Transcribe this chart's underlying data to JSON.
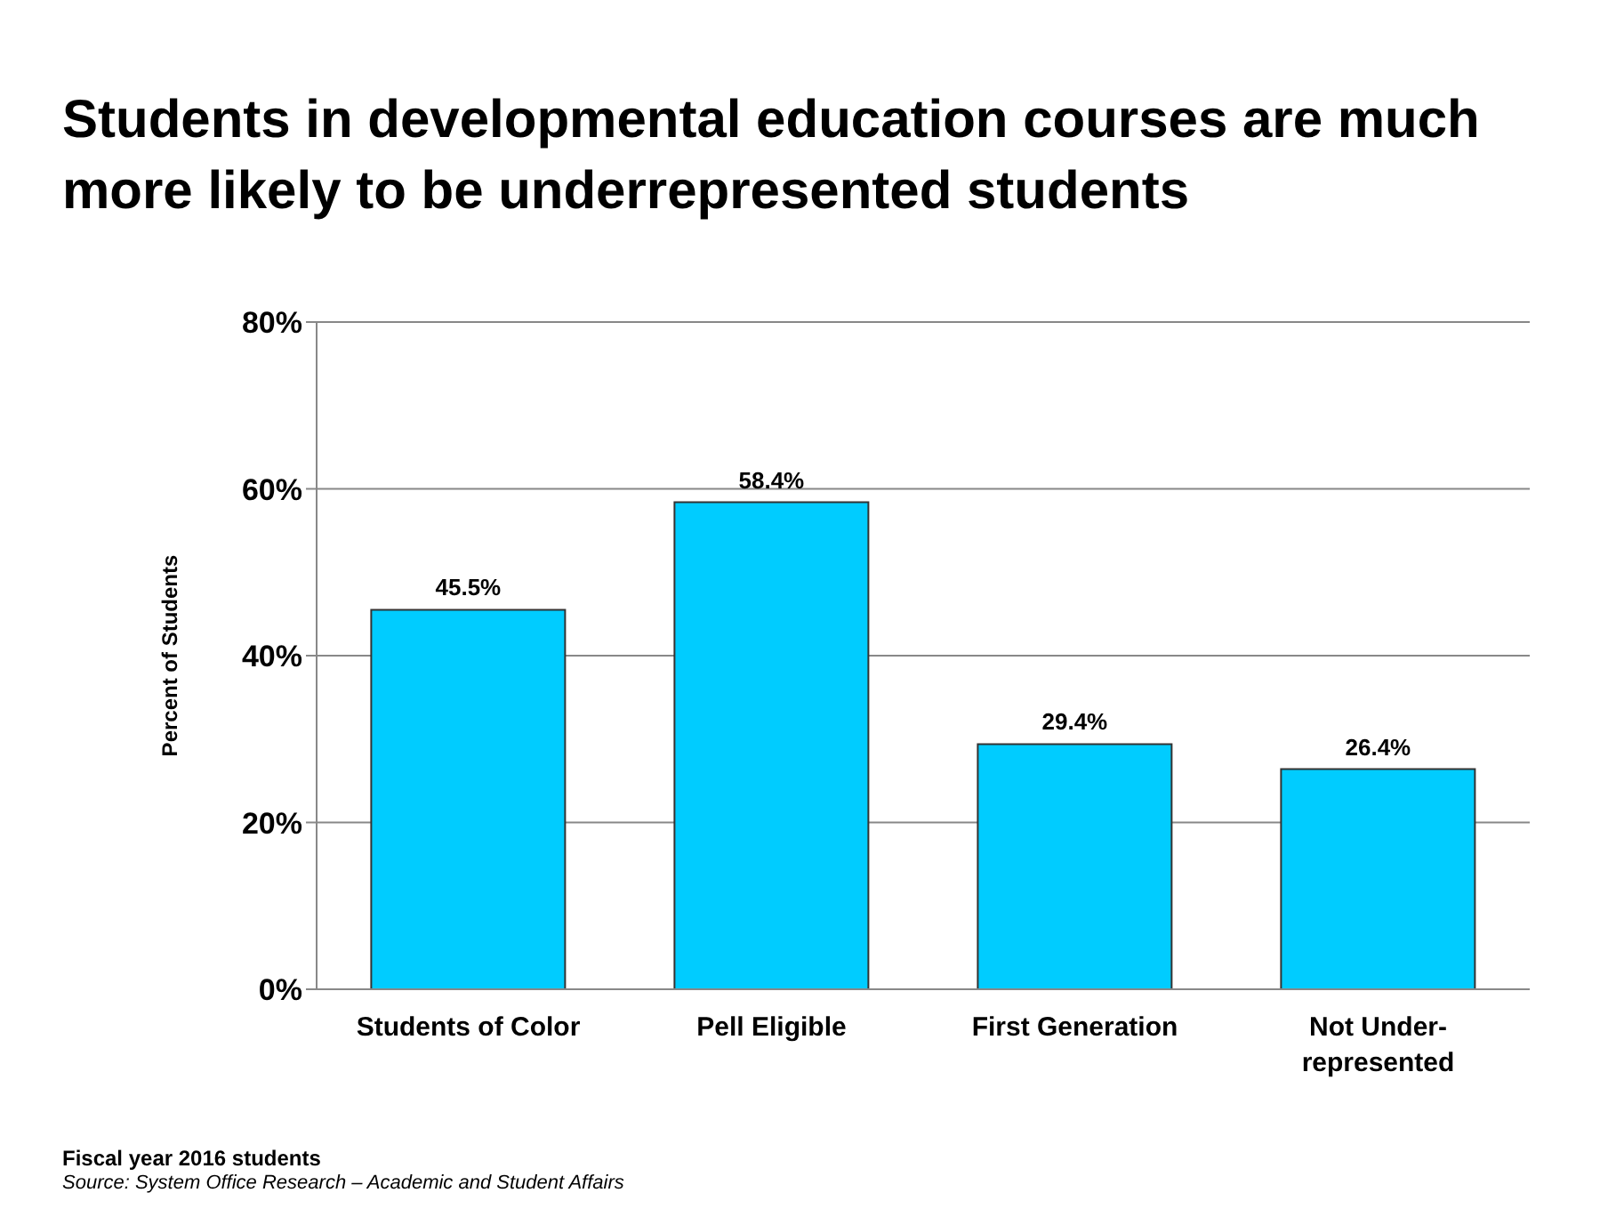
{
  "chart_data": {
    "type": "bar",
    "title": "Students in developmental education courses are much more likely to be underrepresented students",
    "ylabel": "Percent of Students",
    "categories": [
      "Students of Color",
      "Pell Eligible",
      "First Generation",
      "Not Under-represented"
    ],
    "values": [
      45.5,
      58.4,
      29.4,
      26.4
    ],
    "color": "#00ccff",
    "value_labels": [
      "45.5%",
      "58.4%",
      "29.4%",
      "26.4%"
    ],
    "ylim": [
      0,
      80
    ],
    "yticks": [
      {
        "value": 0,
        "label": "0%"
      },
      {
        "value": 20,
        "label": "20%"
      },
      {
        "value": 40,
        "label": "40%"
      },
      {
        "value": 60,
        "label": "60%"
      },
      {
        "value": 80,
        "label": "80%"
      }
    ],
    "grid": "y",
    "legend": false,
    "annotations": [
      "Fiscal year 2016 students",
      "Source: System Office Research – Academic and Student Affairs"
    ]
  }
}
